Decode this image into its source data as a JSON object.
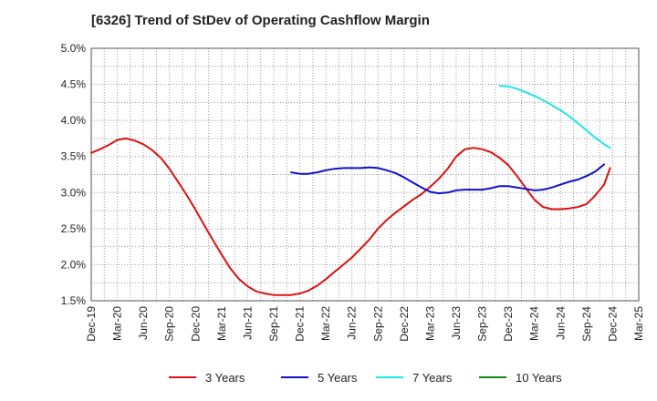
{
  "chart_data": {
    "type": "line",
    "title": "[6326]  Trend of StDev of Operating Cashflow Margin",
    "xlabel": "",
    "ylabel": "",
    "ylim": [
      1.5,
      5.0
    ],
    "y_ticks": [
      "1.5%",
      "2.0%",
      "2.5%",
      "3.0%",
      "3.5%",
      "4.0%",
      "4.5%",
      "5.0%"
    ],
    "x_ticks": [
      "Dec-19",
      "Mar-20",
      "Jun-20",
      "Sep-20",
      "Dec-20",
      "Mar-21",
      "Jun-21",
      "Sep-21",
      "Dec-21",
      "Mar-22",
      "Jun-22",
      "Sep-22",
      "Dec-22",
      "Mar-23",
      "Jun-23",
      "Sep-23",
      "Dec-23",
      "Mar-24",
      "Jun-24",
      "Sep-24",
      "Dec-24",
      "Mar-25"
    ],
    "grid": true,
    "legend_position": "bottom",
    "series": [
      {
        "name": "3 Years",
        "color": "#dd1111",
        "points": [
          [
            0,
            3.55
          ],
          [
            0.33,
            3.6
          ],
          [
            0.67,
            3.66
          ],
          [
            1,
            3.73
          ],
          [
            1.33,
            3.75
          ],
          [
            1.67,
            3.72
          ],
          [
            2,
            3.67
          ],
          [
            2.33,
            3.59
          ],
          [
            2.67,
            3.48
          ],
          [
            3,
            3.33
          ],
          [
            3.33,
            3.15
          ],
          [
            3.67,
            2.96
          ],
          [
            4,
            2.76
          ],
          [
            4.33,
            2.55
          ],
          [
            4.67,
            2.34
          ],
          [
            5,
            2.14
          ],
          [
            5.33,
            1.95
          ],
          [
            5.67,
            1.8
          ],
          [
            6,
            1.7
          ],
          [
            6.33,
            1.63
          ],
          [
            6.67,
            1.6
          ],
          [
            7,
            1.58
          ],
          [
            7.33,
            1.58
          ],
          [
            7.67,
            1.58
          ],
          [
            8,
            1.6
          ],
          [
            8.33,
            1.64
          ],
          [
            8.67,
            1.71
          ],
          [
            9,
            1.8
          ],
          [
            9.33,
            1.9
          ],
          [
            9.67,
            2.0
          ],
          [
            10,
            2.1
          ],
          [
            10.33,
            2.22
          ],
          [
            10.67,
            2.35
          ],
          [
            11,
            2.5
          ],
          [
            11.33,
            2.62
          ],
          [
            11.67,
            2.72
          ],
          [
            12,
            2.81
          ],
          [
            12.33,
            2.9
          ],
          [
            12.67,
            2.98
          ],
          [
            13,
            3.08
          ],
          [
            13.33,
            3.19
          ],
          [
            13.67,
            3.33
          ],
          [
            14,
            3.5
          ],
          [
            14.33,
            3.6
          ],
          [
            14.67,
            3.62
          ],
          [
            15,
            3.6
          ],
          [
            15.33,
            3.56
          ],
          [
            15.67,
            3.48
          ],
          [
            16,
            3.38
          ],
          [
            16.33,
            3.23
          ],
          [
            16.67,
            3.06
          ],
          [
            17,
            2.9
          ],
          [
            17.33,
            2.8
          ],
          [
            17.67,
            2.77
          ],
          [
            18,
            2.77
          ],
          [
            18.33,
            2.78
          ],
          [
            18.67,
            2.8
          ],
          [
            19,
            2.84
          ],
          [
            19.33,
            2.96
          ],
          [
            19.67,
            3.11
          ],
          [
            19.9,
            3.34
          ]
        ]
      },
      {
        "name": "5 Years",
        "color": "#1111cc",
        "points": [
          [
            7.67,
            3.28
          ],
          [
            8,
            3.26
          ],
          [
            8.33,
            3.26
          ],
          [
            8.67,
            3.28
          ],
          [
            9,
            3.31
          ],
          [
            9.33,
            3.33
          ],
          [
            9.67,
            3.34
          ],
          [
            10,
            3.34
          ],
          [
            10.33,
            3.34
          ],
          [
            10.67,
            3.35
          ],
          [
            11,
            3.34
          ],
          [
            11.33,
            3.31
          ],
          [
            11.67,
            3.27
          ],
          [
            12,
            3.21
          ],
          [
            12.33,
            3.14
          ],
          [
            12.67,
            3.07
          ],
          [
            13,
            3.01
          ],
          [
            13.33,
            2.99
          ],
          [
            13.67,
            3.0
          ],
          [
            14,
            3.03
          ],
          [
            14.33,
            3.04
          ],
          [
            14.67,
            3.04
          ],
          [
            15,
            3.04
          ],
          [
            15.33,
            3.06
          ],
          [
            15.67,
            3.09
          ],
          [
            16,
            3.09
          ],
          [
            16.33,
            3.07
          ],
          [
            16.67,
            3.05
          ],
          [
            17,
            3.03
          ],
          [
            17.33,
            3.04
          ],
          [
            17.67,
            3.07
          ],
          [
            18,
            3.11
          ],
          [
            18.33,
            3.15
          ],
          [
            18.67,
            3.18
          ],
          [
            19,
            3.23
          ],
          [
            19.33,
            3.29
          ],
          [
            19.67,
            3.39
          ]
        ]
      },
      {
        "name": "7 Years",
        "color": "#22e5e5",
        "points": [
          [
            15.67,
            4.48
          ],
          [
            16,
            4.47
          ],
          [
            16.33,
            4.44
          ],
          [
            16.67,
            4.39
          ],
          [
            17,
            4.34
          ],
          [
            17.33,
            4.28
          ],
          [
            17.67,
            4.21
          ],
          [
            18,
            4.14
          ],
          [
            18.33,
            4.06
          ],
          [
            18.67,
            3.96
          ],
          [
            19,
            3.86
          ],
          [
            19.33,
            3.76
          ],
          [
            19.67,
            3.67
          ],
          [
            19.9,
            3.62
          ]
        ]
      },
      {
        "name": "10 Years",
        "color": "#118811",
        "points": []
      }
    ]
  }
}
